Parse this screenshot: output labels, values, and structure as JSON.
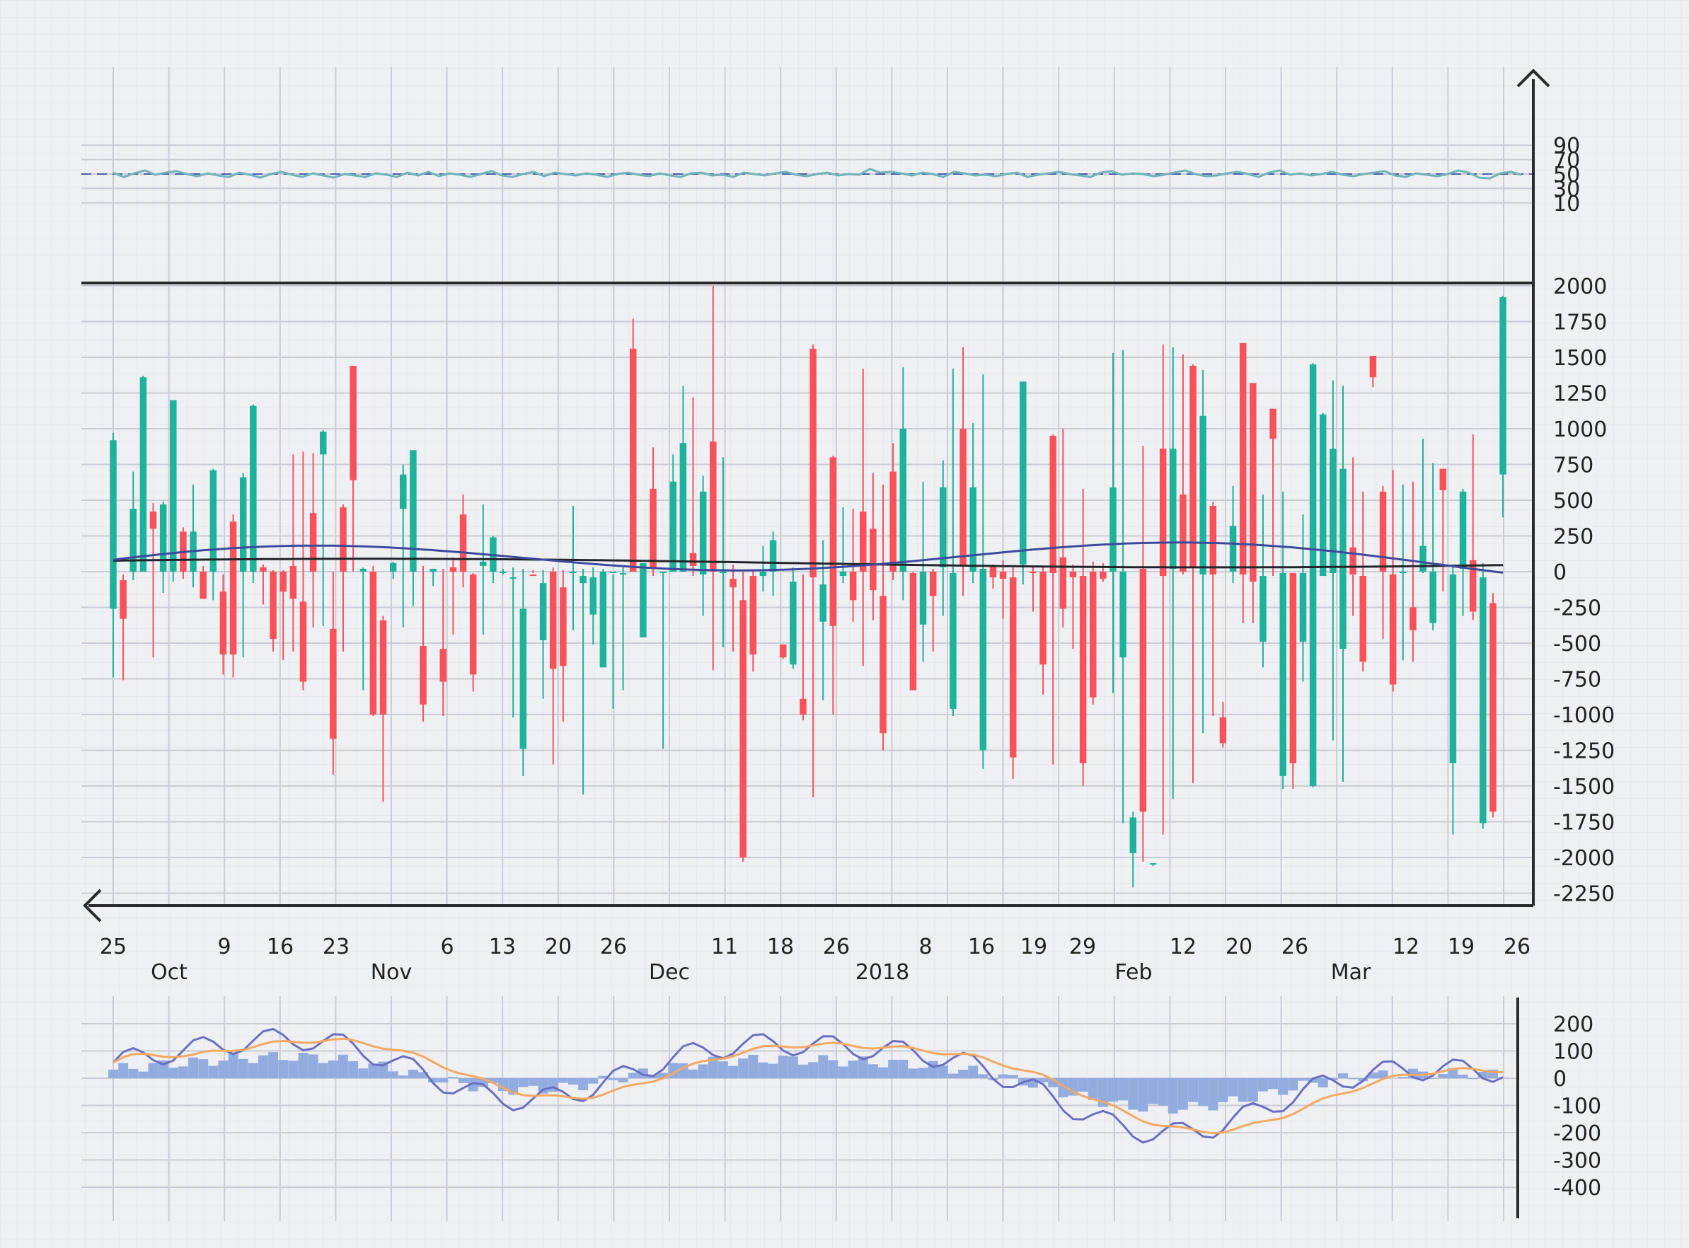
{
  "chart_data": [
    {
      "panel": "rsi",
      "type": "line",
      "y_ticks": [
        90,
        70,
        50,
        30,
        10
      ],
      "ylim": [
        0,
        100
      ],
      "reference_line": 50,
      "series": [
        {
          "values": [
            52,
            46,
            51,
            55,
            49,
            52,
            54,
            50,
            47,
            51,
            48,
            46,
            52,
            49,
            45,
            50,
            53,
            49,
            46,
            51,
            48,
            45,
            50,
            48,
            46,
            51,
            49,
            46,
            52,
            48,
            53,
            47,
            51,
            49,
            46,
            50,
            54,
            48,
            46,
            50,
            53,
            47,
            52,
            50,
            48,
            51,
            49,
            46,
            50,
            52,
            49,
            47,
            51,
            48,
            46,
            51,
            52,
            48,
            49,
            46,
            52,
            50,
            48,
            51,
            53,
            49,
            47,
            50,
            52,
            48,
            50,
            49,
            57,
            52,
            53,
            51,
            48,
            52,
            50,
            46,
            53,
            51,
            48,
            49,
            47,
            50,
            52,
            46,
            49,
            51,
            53,
            50,
            48,
            46,
            52,
            54,
            49,
            51,
            50,
            47,
            49,
            52,
            55,
            50,
            47,
            48,
            51,
            53,
            50,
            46,
            52,
            55,
            49,
            51,
            48,
            50,
            53,
            49,
            47,
            50,
            52,
            54,
            48,
            46,
            51,
            49,
            47,
            50,
            55,
            52,
            45,
            44,
            51,
            53,
            49
          ]
        }
      ]
    },
    {
      "panel": "volume-oscillator",
      "type": "bar",
      "y_ticks": [
        2000,
        1750,
        1500,
        1250,
        1000,
        750,
        500,
        250,
        0,
        -250,
        -500,
        -750,
        -1000,
        -1250,
        -1500,
        -1750,
        -2000,
        -2250
      ],
      "ylim": [
        -2300,
        2050
      ],
      "bars": [
        [
          0,
          -260,
          920,
          -740,
          970
        ],
        [
          1,
          -60,
          -330,
          -760,
          -20
        ],
        [
          2,
          0,
          440,
          -60,
          700
        ],
        [
          3,
          0,
          1360,
          0,
          1370
        ],
        [
          4,
          420,
          300,
          -600,
          480
        ],
        [
          5,
          0,
          470,
          -150,
          490
        ],
        [
          6,
          0,
          1200,
          -70,
          1200
        ],
        [
          7,
          280,
          0,
          -50,
          310
        ],
        [
          8,
          0,
          280,
          -110,
          610
        ],
        [
          9,
          0,
          -190,
          -170,
          40
        ],
        [
          10,
          0,
          710,
          -200,
          720
        ],
        [
          11,
          -140,
          -580,
          -720,
          -20
        ],
        [
          12,
          350,
          -580,
          -740,
          400
        ],
        [
          13,
          0,
          660,
          -600,
          690
        ],
        [
          14,
          0,
          1160,
          -80,
          1170
        ],
        [
          15,
          30,
          0,
          -230,
          50
        ],
        [
          16,
          0,
          -470,
          -560,
          10
        ],
        [
          17,
          0,
          -140,
          -620,
          10
        ],
        [
          18,
          40,
          -190,
          -560,
          820
        ],
        [
          19,
          -210,
          -770,
          -830,
          840
        ],
        [
          20,
          410,
          0,
          -390,
          830
        ],
        [
          21,
          820,
          980,
          -380,
          990
        ],
        [
          22,
          -400,
          -1170,
          -1420,
          0
        ],
        [
          23,
          450,
          0,
          -560,
          470
        ],
        [
          24,
          1440,
          640,
          0,
          1440
        ],
        [
          25,
          0,
          20,
          -830,
          30
        ],
        [
          26,
          0,
          -1000,
          -1010,
          40
        ],
        [
          27,
          -340,
          -1000,
          -1610,
          -310
        ],
        [
          28,
          0,
          60,
          -50,
          70
        ],
        [
          29,
          440,
          680,
          -390,
          750
        ],
        [
          30,
          0,
          850,
          -240,
          850
        ],
        [
          31,
          -520,
          -930,
          -1050,
          40
        ],
        [
          32,
          0,
          20,
          -100,
          20
        ],
        [
          33,
          -540,
          -770,
          -1010,
          20
        ],
        [
          34,
          30,
          0,
          -440,
          100
        ],
        [
          35,
          400,
          0,
          -110,
          540
        ],
        [
          36,
          -20,
          -720,
          -840,
          -10
        ],
        [
          37,
          40,
          70,
          -440,
          470
        ],
        [
          38,
          0,
          240,
          -80,
          250
        ],
        [
          39,
          0,
          0,
          -20,
          20
        ],
        [
          40,
          -50,
          -40,
          -1020,
          30
        ],
        [
          41,
          -1240,
          -260,
          -1430,
          20
        ],
        [
          42,
          -20,
          -30,
          -10,
          10
        ],
        [
          43,
          -480,
          -80,
          -890,
          10
        ],
        [
          44,
          0,
          -680,
          -1350,
          30
        ],
        [
          45,
          -110,
          -660,
          -1050,
          10
        ],
        [
          46,
          0,
          0,
          -410,
          460
        ],
        [
          47,
          -80,
          -30,
          -1560,
          20
        ],
        [
          48,
          -300,
          -40,
          -510,
          30
        ],
        [
          49,
          -670,
          0,
          -650,
          20
        ],
        [
          50,
          0,
          0,
          -960,
          -20
        ],
        [
          51,
          -20,
          -10,
          -830,
          30
        ],
        [
          52,
          1560,
          0,
          40,
          1770
        ],
        [
          53,
          -460,
          60,
          -60,
          30
        ],
        [
          54,
          580,
          30,
          -30,
          870
        ],
        [
          55,
          0,
          0,
          -1240,
          0
        ],
        [
          56,
          0,
          630,
          0,
          820
        ],
        [
          57,
          0,
          900,
          50,
          1300
        ],
        [
          58,
          130,
          40,
          -30,
          1220
        ],
        [
          59,
          -20,
          560,
          -310,
          670
        ],
        [
          60,
          910,
          0,
          -690,
          2000
        ],
        [
          61,
          0,
          0,
          -530,
          800
        ],
        [
          62,
          -50,
          -110,
          -560,
          50
        ],
        [
          63,
          -200,
          -2000,
          -2030,
          0
        ],
        [
          64,
          -30,
          -580,
          -700,
          10
        ],
        [
          65,
          -30,
          0,
          -140,
          180
        ],
        [
          66,
          0,
          220,
          -170,
          280
        ],
        [
          67,
          -510,
          -600,
          -610,
          -510
        ],
        [
          68,
          -650,
          -70,
          -680,
          30
        ],
        [
          69,
          -890,
          -1000,
          -1040,
          -20
        ],
        [
          70,
          1560,
          -40,
          -1580,
          1590
        ],
        [
          71,
          -350,
          -90,
          -900,
          220
        ],
        [
          72,
          800,
          -380,
          -1000,
          810
        ],
        [
          73,
          -30,
          0,
          -80,
          450
        ],
        [
          74,
          0,
          -200,
          -350,
          440
        ],
        [
          75,
          420,
          0,
          -660,
          1420
        ],
        [
          76,
          300,
          -130,
          -340,
          690
        ],
        [
          77,
          -170,
          -1130,
          -1250,
          610
        ],
        [
          78,
          700,
          0,
          -60,
          900
        ],
        [
          79,
          0,
          1000,
          -200,
          1430
        ],
        [
          80,
          -10,
          -830,
          -830,
          0
        ],
        [
          81,
          -370,
          0,
          -630,
          630
        ],
        [
          82,
          0,
          -170,
          -560,
          20
        ],
        [
          83,
          30,
          590,
          -310,
          780
        ],
        [
          84,
          -960,
          -10,
          -1010,
          1420
        ],
        [
          85,
          1000,
          50,
          -170,
          1570
        ],
        [
          86,
          0,
          590,
          -80,
          1040
        ],
        [
          87,
          -1250,
          20,
          -1380,
          1380
        ],
        [
          88,
          40,
          -40,
          -120,
          50
        ],
        [
          89,
          0,
          -50,
          -330,
          80
        ],
        [
          90,
          -40,
          -1300,
          -1450,
          30
        ],
        [
          91,
          50,
          1330,
          -90,
          1330
        ],
        [
          92,
          0,
          -10,
          -280,
          30
        ],
        [
          93,
          0,
          -650,
          -860,
          40
        ],
        [
          94,
          950,
          -10,
          -1350,
          960
        ],
        [
          95,
          100,
          -260,
          -390,
          1000
        ],
        [
          96,
          0,
          -40,
          -540,
          50
        ],
        [
          97,
          -30,
          -1340,
          -1500,
          580
        ],
        [
          98,
          0,
          -880,
          -930,
          70
        ],
        [
          99,
          0,
          -50,
          -70,
          60
        ],
        [
          100,
          0,
          590,
          -850,
          1530
        ],
        [
          101,
          -600,
          0,
          -1760,
          1550
        ],
        [
          102,
          -1970,
          -1720,
          -2210,
          -1680
        ],
        [
          103,
          20,
          -1680,
          -2030,
          880
        ],
        [
          104,
          -2050,
          -2040,
          -2060,
          -2040
        ],
        [
          105,
          860,
          -30,
          -1840,
          1590
        ],
        [
          106,
          20,
          860,
          -1590,
          1570
        ],
        [
          107,
          540,
          0,
          -20,
          1520
        ],
        [
          108,
          1440,
          30,
          -1480,
          1450
        ],
        [
          109,
          -20,
          1090,
          -1130,
          1410
        ],
        [
          110,
          460,
          -20,
          -1010,
          490
        ],
        [
          111,
          -1020,
          -1200,
          -1230,
          -910
        ],
        [
          112,
          0,
          320,
          -80,
          600
        ],
        [
          113,
          1600,
          -20,
          -360,
          1600
        ],
        [
          114,
          1320,
          -70,
          -360,
          1320
        ],
        [
          115,
          -490,
          -30,
          -670,
          540
        ],
        [
          116,
          1140,
          930,
          -30,
          1140
        ],
        [
          117,
          -1430,
          -10,
          -1520,
          560
        ],
        [
          118,
          -10,
          -1340,
          -1520,
          -10
        ],
        [
          119,
          -490,
          -10,
          -770,
          400
        ],
        [
          120,
          -1500,
          1450,
          -1510,
          1460
        ],
        [
          121,
          -30,
          1100,
          -20,
          1110
        ],
        [
          122,
          -10,
          860,
          -1180,
          1340
        ],
        [
          123,
          -540,
          720,
          -1470,
          1300
        ],
        [
          124,
          170,
          -20,
          -310,
          800
        ],
        [
          125,
          -30,
          -630,
          -700,
          560
        ],
        [
          126,
          1510,
          1360,
          1290,
          1500
        ],
        [
          127,
          560,
          0,
          -470,
          600
        ],
        [
          128,
          -20,
          -790,
          -840,
          710
        ],
        [
          129,
          0,
          0,
          -620,
          610
        ],
        [
          130,
          -250,
          -410,
          -630,
          630
        ],
        [
          131,
          0,
          180,
          -10,
          930
        ],
        [
          132,
          -360,
          0,
          -410,
          760
        ],
        [
          133,
          720,
          570,
          -140,
          580
        ],
        [
          134,
          -1340,
          -20,
          -1840,
          30
        ],
        [
          135,
          20,
          560,
          -310,
          580
        ],
        [
          136,
          80,
          -280,
          -340,
          960
        ],
        [
          137,
          -1760,
          -40,
          -1800,
          60
        ],
        [
          138,
          -220,
          -1680,
          -1720,
          -150
        ],
        [
          139,
          680,
          1920,
          380,
          1930
        ]
      ]
    },
    {
      "panel": "macd",
      "type": "bar",
      "y_ticks": [
        200,
        100,
        0,
        -100,
        -200,
        -300,
        -400
      ],
      "ylim": [
        -460,
        260
      ]
    }
  ],
  "x_axis": {
    "day_labels": [
      "25",
      "9",
      "16",
      "23",
      "6",
      "13",
      "20",
      "26",
      "11",
      "18",
      "26",
      "8",
      "16",
      "19",
      "29",
      "12",
      "20",
      "26",
      "12",
      "19",
      "26"
    ],
    "month_labels": [
      "Oct",
      "Nov",
      "Dec",
      "2018",
      "Feb",
      "Mar"
    ]
  }
}
